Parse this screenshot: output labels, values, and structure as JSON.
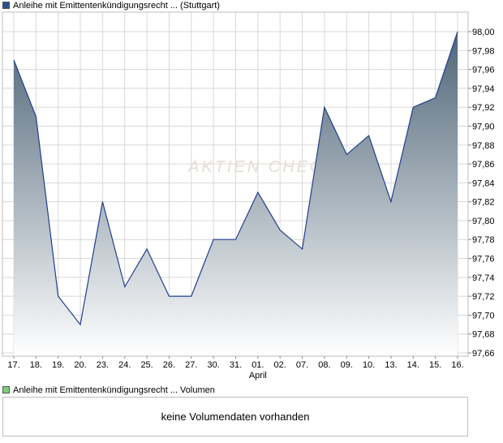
{
  "legend": {
    "price_label": "Anleihe mit Emittentenkündigungsrecht ... (Stuttgart)",
    "price_color": "#2b4f8f",
    "volume_label": "Anleihe mit Emittentenkündigungsrecht ... Volumen",
    "volume_color": "#7ccf7c"
  },
  "watermark": "AKTIEN CHECK",
  "volume": {
    "message": "keine Volumendaten vorhanden"
  },
  "chart_data": {
    "type": "area",
    "title": "",
    "xlabel": "",
    "ylabel": "",
    "x": [
      "17.",
      "18.",
      "19.",
      "20.",
      "23.",
      "24.",
      "25.",
      "26.",
      "27.",
      "30.",
      "31.",
      "01.",
      "02.",
      "07.",
      "08.",
      "09.",
      "10.",
      "13.",
      "14.",
      "15.",
      "16."
    ],
    "x_secondary": {
      "index": 11,
      "label": "April"
    },
    "series": [
      {
        "values": [
          97.97,
          97.91,
          97.72,
          97.69,
          97.82,
          97.73,
          97.77,
          97.72,
          97.72,
          97.78,
          97.78,
          97.83,
          97.79,
          97.77,
          97.92,
          97.87,
          97.89,
          97.82,
          97.92,
          97.93,
          98.0
        ]
      }
    ],
    "ylim": [
      97.66,
      98.0
    ],
    "yticks": [
      "98,00",
      "97,98",
      "97,96",
      "97,94",
      "97,92",
      "97,90",
      "97,88",
      "97,86",
      "97,84",
      "97,82",
      "97,80",
      "97,78",
      "97,76",
      "97,74",
      "97,72",
      "97,70",
      "97,68",
      "97,66"
    ],
    "grid": true,
    "colors": {
      "line": "#1f3f8f",
      "fill_top": "#4f6577",
      "fill_bottom": "#ffffff",
      "grid": "#d8d8d8"
    }
  }
}
